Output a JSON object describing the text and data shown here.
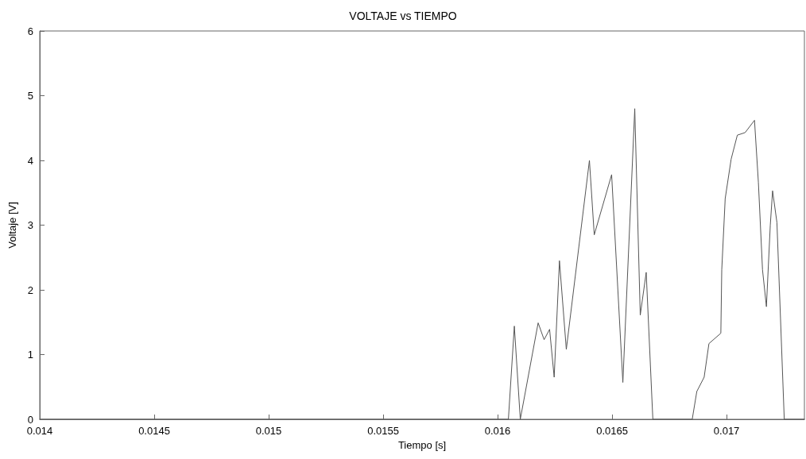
{
  "chart_data": {
    "type": "line",
    "title": "VOLTAJE vs TIEMPO",
    "xlabel": "Tiempo [s]",
    "ylabel": "Voltaje [V]",
    "xlim": [
      0.014,
      0.01734
    ],
    "xticks": [
      0.014,
      0.0145,
      0.015,
      0.0155,
      0.016,
      0.0165,
      0.017
    ],
    "ylim": [
      0,
      6
    ],
    "yticks": [
      0,
      1,
      2,
      3,
      4,
      5,
      6
    ],
    "marker": "none",
    "line_style": "solid",
    "series": [
      {
        "color": "#555555",
        "x": [
          0.014,
          0.016047,
          0.016073,
          0.016099,
          0.016177,
          0.016203,
          0.016227,
          0.016247,
          0.01627,
          0.0163,
          0.016401,
          0.016422,
          0.016498,
          0.016547,
          0.016599,
          0.016623,
          0.016649,
          0.016678,
          0.01685,
          0.01687,
          0.016902,
          0.016923,
          0.016975,
          0.016979,
          0.016994,
          0.01702,
          0.017047,
          0.017081,
          0.017122,
          0.017139,
          0.017157,
          0.017174,
          0.017191,
          0.017201,
          0.01722,
          0.017252,
          0.01734
        ],
        "values": [
          0,
          0,
          1.44,
          0,
          1.49,
          1.23,
          1.39,
          0.65,
          2.45,
          1.08,
          4.0,
          2.85,
          3.78,
          0.57,
          4.8,
          1.61,
          2.27,
          0,
          0,
          0.43,
          0.65,
          1.17,
          1.33,
          2.31,
          3.41,
          4.02,
          4.39,
          4.43,
          4.62,
          3.66,
          2.31,
          1.74,
          3.0,
          3.53,
          3.04,
          0,
          0
        ]
      }
    ]
  }
}
